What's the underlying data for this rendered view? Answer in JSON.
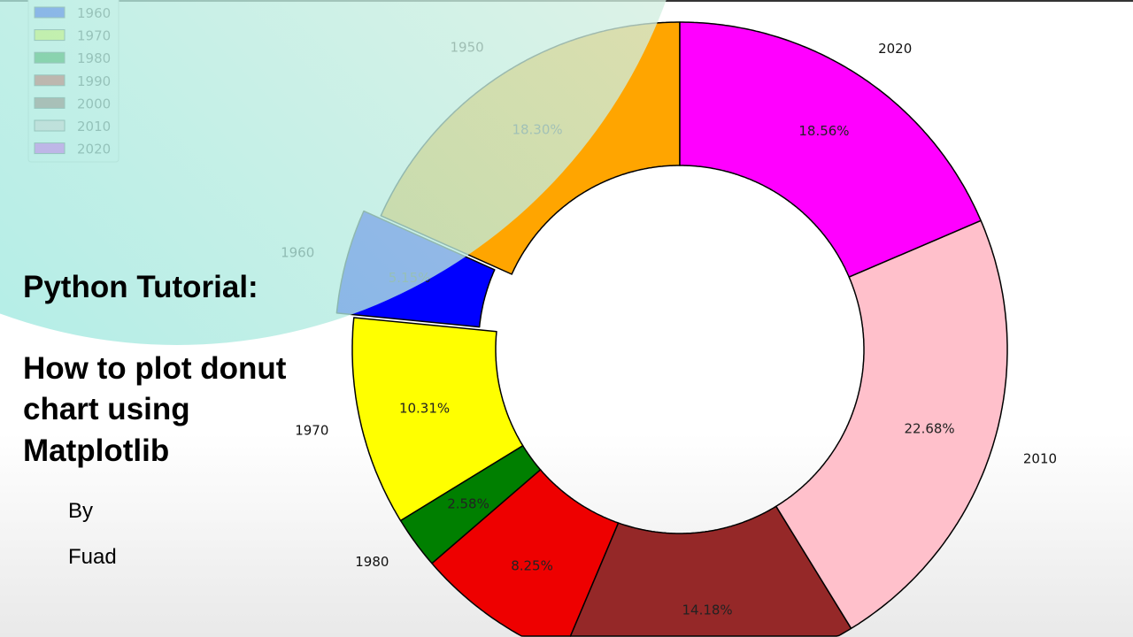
{
  "chart_data": {
    "type": "pie",
    "donut": true,
    "categories": [
      "1950",
      "1960",
      "1970",
      "1980",
      "1990",
      "2000",
      "2010",
      "2020"
    ],
    "values": [
      18.3,
      5.15,
      10.31,
      2.58,
      8.25,
      14.18,
      22.68,
      18.56
    ],
    "percent_labels": [
      "18.30%",
      "5.15%",
      "10.31%",
      "2.58%",
      "8.25%",
      "14.18%",
      "22.68%",
      "18.56%"
    ],
    "colors": [
      "#ffa500",
      "#0000ff",
      "#ffff00",
      "#007f00",
      "#ee0000",
      "#952828",
      "#ffc0cb",
      "#ff00ff"
    ],
    "exploded": [
      "1960"
    ],
    "start_angle_deg": 90,
    "direction": "counterclockwise",
    "visible_category_labels": [
      "1950",
      "1960",
      "1970",
      "1980",
      "2010",
      "2020"
    ],
    "legend": {
      "placement": "upper-left",
      "entries": [
        "1960",
        "1970",
        "1980",
        "1990",
        "2000",
        "2010",
        "2020"
      ],
      "colors": [
        "#7a9ae0",
        "#e0f07a",
        "#5fc08a",
        "#c8a090",
        "#90a898",
        "#c8e8e0",
        "#a890e0"
      ]
    }
  },
  "overlay": {
    "title_line1": "Python Tutorial:",
    "title_line2": "How to plot donut",
    "title_line3": "chart using",
    "title_line4": "Matplotlib",
    "by": "By",
    "author": "Fuad"
  }
}
